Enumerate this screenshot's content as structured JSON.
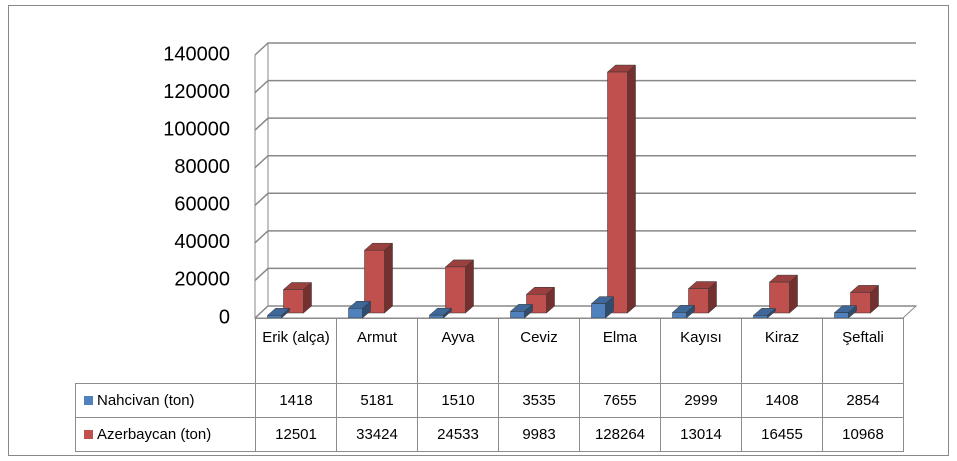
{
  "chart_data": {
    "type": "bar3d",
    "categories": [
      "Erik (alça)",
      "Armut",
      "Ayva",
      "Ceviz",
      "Elma",
      "Kayısı",
      "Kiraz",
      "Şeftali"
    ],
    "series": [
      {
        "name": "Nahcivan (ton)",
        "color": "#4f81bd",
        "values": [
          1418,
          5181,
          1510,
          3535,
          7655,
          2999,
          1408,
          2854
        ]
      },
      {
        "name": "Azerbaycan (ton)",
        "color": "#c0504d",
        "values": [
          12501,
          33424,
          24533,
          9983,
          128264,
          13014,
          16455,
          10968
        ]
      }
    ],
    "ylim": [
      0,
      140000
    ],
    "yticks": [
      0,
      20000,
      40000,
      60000,
      80000,
      100000,
      120000,
      140000
    ],
    "grid": true
  }
}
